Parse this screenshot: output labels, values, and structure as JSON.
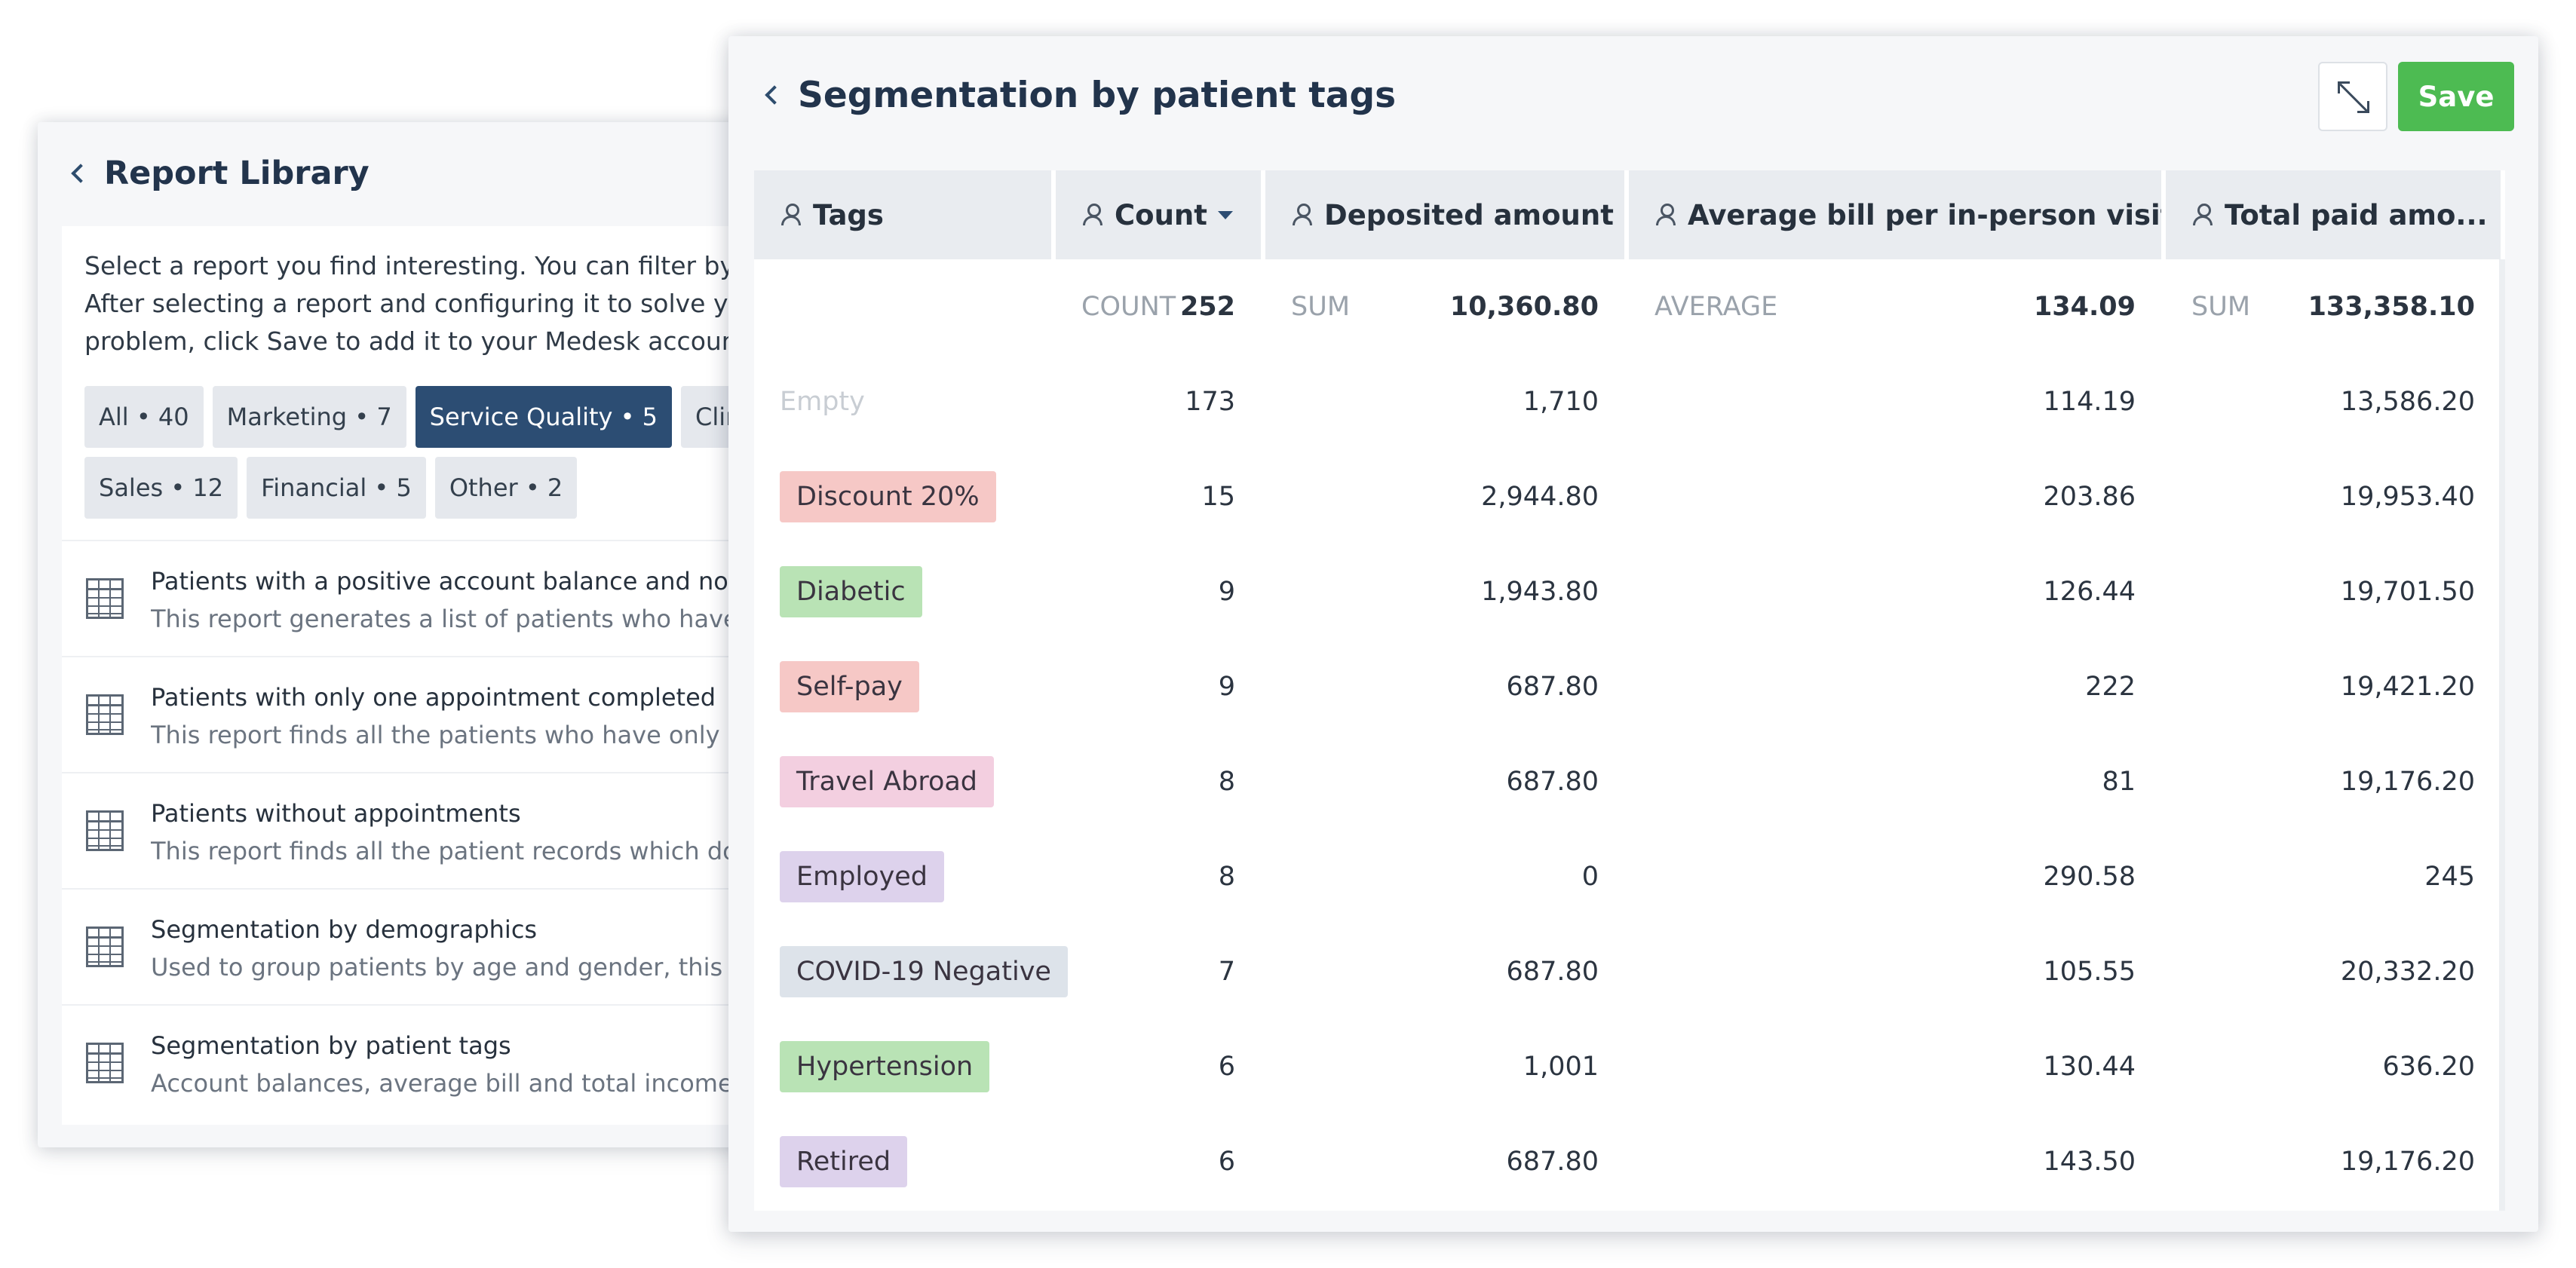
{
  "library": {
    "title": "Report Library",
    "description_lines": [
      "Select a report you find interesting. You can filter by cate",
      "After selecting a report and configuring it to solve your",
      "problem, click Save to add it to your Medesk account."
    ],
    "chips_row1": [
      "All • 40",
      "Marketing • 7",
      "Service Quality • 5",
      "Clinical"
    ],
    "chips_row2": [
      "Sales • 12",
      "Financial • 5",
      "Other • 2"
    ],
    "active_chip": "Service Quality • 5",
    "reports": [
      {
        "title": "Patients with a positive account balance and no pl...",
        "subtitle": "This report generates a list of patients who have a..."
      },
      {
        "title": "Patients with only one appointment completed",
        "subtitle": "This report finds all the patients who have only ev..."
      },
      {
        "title": "Patients without appointments",
        "subtitle": "This report finds all the patient records which do ..."
      },
      {
        "title": "Segmentation by demographics",
        "subtitle": "Used to group patients by age and gender, this re..."
      },
      {
        "title": "Segmentation by patient tags",
        "subtitle": "Account balances, average bill and total income b..."
      }
    ]
  },
  "segmentation": {
    "title": "Segmentation by patient tags",
    "save_label": "Save",
    "columns": [
      "Tags",
      "Count",
      "Deposited amount",
      "Average bill per in-person visit",
      "Total paid amo..."
    ],
    "aggregates": {
      "count_label": "COUNT",
      "count_value": "252",
      "deposited_label": "SUM",
      "deposited_value": "10,360.80",
      "avg_label": "AVERAGE",
      "avg_value": "134.09",
      "total_label": "SUM",
      "total_value": "133,358.10"
    },
    "rows": [
      {
        "tag": "Empty",
        "color": "none",
        "count": "173",
        "deposited": "1,710",
        "avg": "114.19",
        "total": "13,586.20"
      },
      {
        "tag": "Discount 20%",
        "color": "red",
        "count": "15",
        "deposited": "2,944.80",
        "avg": "203.86",
        "total": "19,953.40"
      },
      {
        "tag": "Diabetic",
        "color": "green",
        "count": "9",
        "deposited": "1,943.80",
        "avg": "126.44",
        "total": "19,701.50"
      },
      {
        "tag": "Self-pay",
        "color": "red",
        "count": "9",
        "deposited": "687.80",
        "avg": "222",
        "total": "19,421.20"
      },
      {
        "tag": "Travel Abroad",
        "color": "pink",
        "count": "8",
        "deposited": "687.80",
        "avg": "81",
        "total": "19,176.20"
      },
      {
        "tag": "Employed",
        "color": "purple",
        "count": "8",
        "deposited": "0",
        "avg": "290.58",
        "total": "245"
      },
      {
        "tag": "COVID-19 Negative",
        "color": "gray",
        "count": "7",
        "deposited": "687.80",
        "avg": "105.55",
        "total": "20,332.20"
      },
      {
        "tag": "Hypertension",
        "color": "green",
        "count": "6",
        "deposited": "1,001",
        "avg": "130.44",
        "total": "636.20"
      },
      {
        "tag": "Retired",
        "color": "purple",
        "count": "6",
        "deposited": "687.80",
        "avg": "143.50",
        "total": "19,176.20"
      }
    ]
  },
  "colors": {
    "accent": "#2c4d73",
    "save": "#4dbb52"
  },
  "icons": [
    "back-chevron-icon",
    "report-table-icon",
    "expand-icon",
    "user-icon",
    "sort-desc-icon"
  ]
}
